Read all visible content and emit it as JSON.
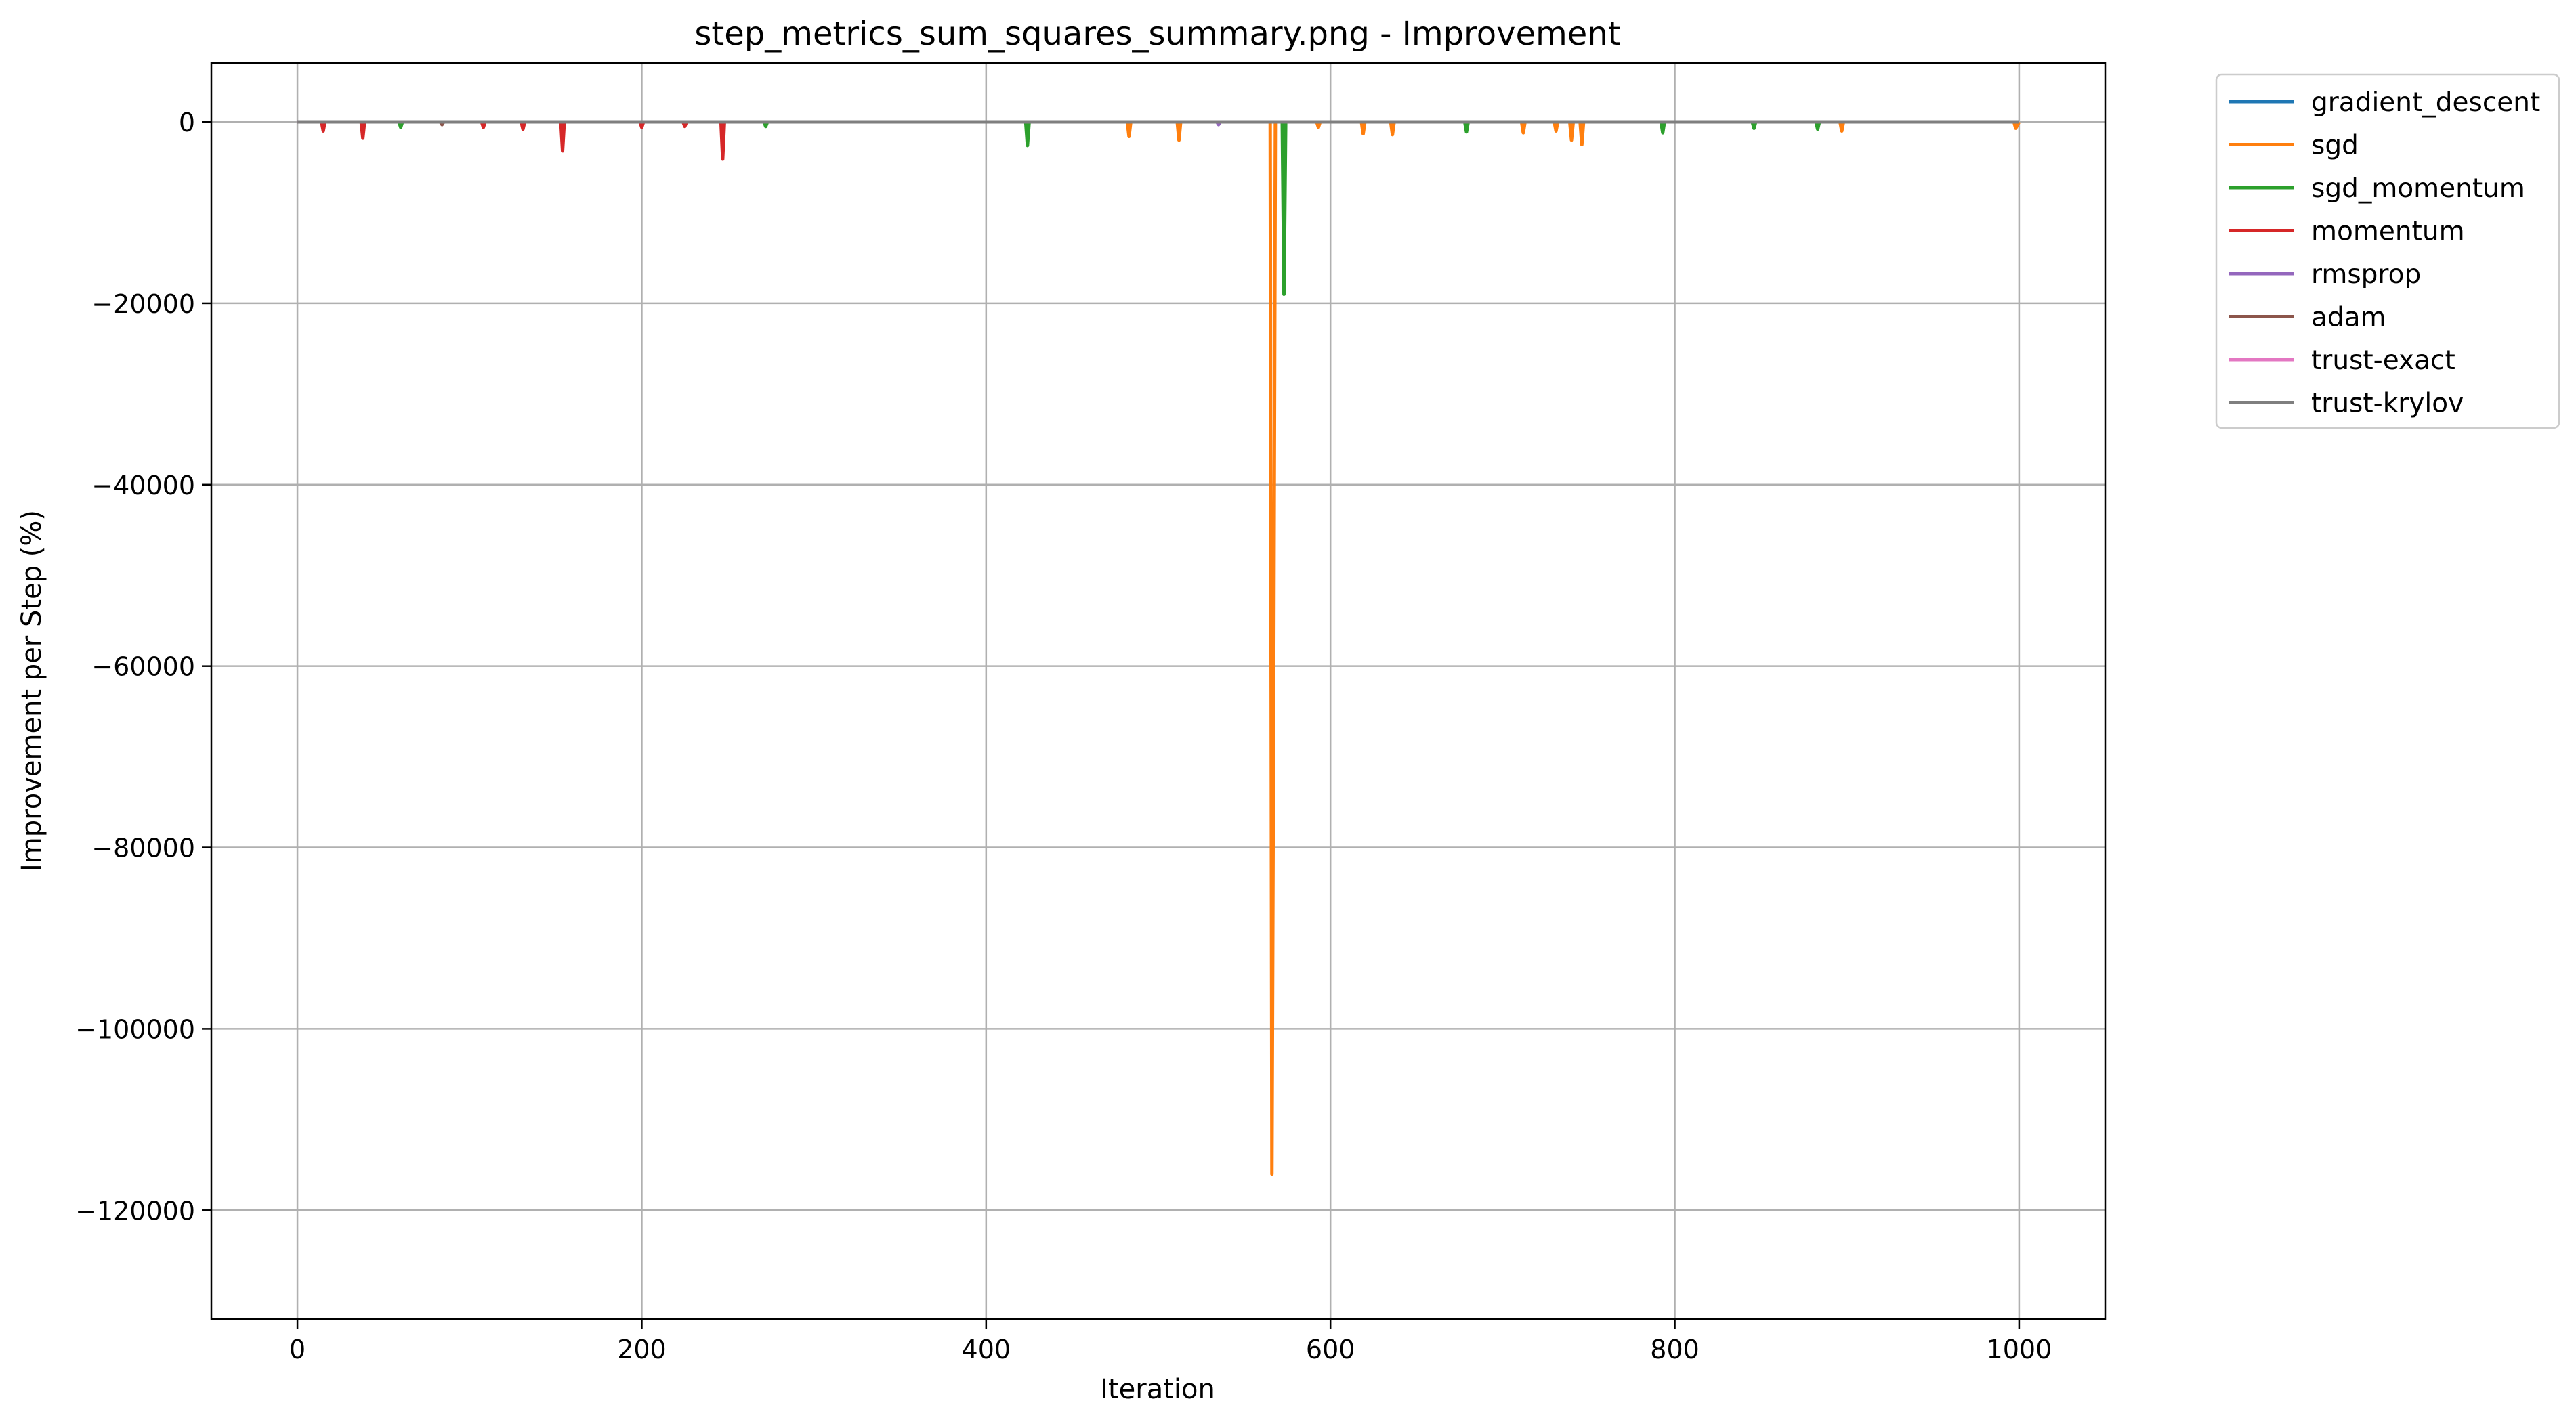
{
  "chart_data": {
    "type": "line",
    "title": "step_metrics_sum_squares_summary.png - Improvement",
    "xlabel": "Iteration",
    "ylabel": "Improvement per Step (%)",
    "xlim": [
      -50,
      1050
    ],
    "ylim": [
      -132000,
      6500
    ],
    "x_ticks": [
      0,
      200,
      400,
      600,
      800,
      1000
    ],
    "y_ticks": [
      0,
      -20000,
      -40000,
      -60000,
      -80000,
      -100000,
      -120000
    ],
    "x_tick_labels": [
      "0",
      "200",
      "400",
      "600",
      "800",
      "1000"
    ],
    "y_tick_labels": [
      "0",
      "−20000",
      "−40000",
      "−60000",
      "−80000",
      "−100000",
      "−120000"
    ],
    "grid": true,
    "legend_position": "outside-top-right",
    "series": [
      {
        "name": "gradient_descent",
        "color": "#1f77b4",
        "points": [
          [
            0,
            0
          ],
          [
            1000,
            0
          ]
        ]
      },
      {
        "name": "sgd",
        "color": "#ff7f0e",
        "points": [
          [
            0,
            0
          ],
          [
            482,
            0
          ],
          [
            483,
            -1600
          ],
          [
            484,
            0
          ],
          [
            511,
            0
          ],
          [
            512,
            -2000
          ],
          [
            513,
            0
          ],
          [
            565,
            0
          ],
          [
            566,
            -116000
          ],
          [
            567,
            -63000
          ],
          [
            568,
            0
          ],
          [
            592,
            0
          ],
          [
            593,
            -600
          ],
          [
            594,
            0
          ],
          [
            618,
            0
          ],
          [
            619,
            -1300
          ],
          [
            620,
            0
          ],
          [
            635,
            0
          ],
          [
            636,
            -1400
          ],
          [
            637,
            0
          ],
          [
            711,
            0
          ],
          [
            712,
            -1200
          ],
          [
            713,
            0
          ],
          [
            730,
            0
          ],
          [
            731,
            -1000
          ],
          [
            732,
            0
          ],
          [
            739,
            0
          ],
          [
            740,
            -2000
          ],
          [
            741,
            0
          ],
          [
            745,
            0
          ],
          [
            746,
            -2500
          ],
          [
            747,
            0
          ],
          [
            896,
            0
          ],
          [
            897,
            -1000
          ],
          [
            898,
            0
          ],
          [
            997,
            0
          ],
          [
            998,
            -700
          ],
          [
            1000,
            0
          ]
        ]
      },
      {
        "name": "sgd_momentum",
        "color": "#2ca02c",
        "points": [
          [
            0,
            0
          ],
          [
            59,
            0
          ],
          [
            60,
            -600
          ],
          [
            61,
            0
          ],
          [
            271,
            0
          ],
          [
            272,
            -500
          ],
          [
            273,
            0
          ],
          [
            423,
            0
          ],
          [
            424,
            -2600
          ],
          [
            425,
            0
          ],
          [
            572,
            0
          ],
          [
            573,
            -19000
          ],
          [
            574,
            0
          ],
          [
            678,
            0
          ],
          [
            679,
            -1100
          ],
          [
            680,
            0
          ],
          [
            792,
            0
          ],
          [
            793,
            -1200
          ],
          [
            794,
            0
          ],
          [
            845,
            0
          ],
          [
            846,
            -700
          ],
          [
            847,
            0
          ],
          [
            882,
            0
          ],
          [
            883,
            -800
          ],
          [
            884,
            0
          ],
          [
            1000,
            0
          ]
        ]
      },
      {
        "name": "momentum",
        "color": "#d62728",
        "points": [
          [
            0,
            0
          ],
          [
            14,
            0
          ],
          [
            15,
            -1000
          ],
          [
            16,
            0
          ],
          [
            37,
            0
          ],
          [
            38,
            -1800
          ],
          [
            39,
            0
          ],
          [
            107,
            0
          ],
          [
            108,
            -600
          ],
          [
            109,
            0
          ],
          [
            130,
            0
          ],
          [
            131,
            -800
          ],
          [
            132,
            0
          ],
          [
            153,
            0
          ],
          [
            154,
            -3200
          ],
          [
            155,
            0
          ],
          [
            199,
            0
          ],
          [
            200,
            -600
          ],
          [
            201,
            0
          ],
          [
            224,
            0
          ],
          [
            225,
            -500
          ],
          [
            226,
            0
          ],
          [
            246,
            0
          ],
          [
            247,
            -4100
          ],
          [
            248,
            0
          ],
          [
            1000,
            0
          ]
        ]
      },
      {
        "name": "rmsprop",
        "color": "#9467bd",
        "points": [
          [
            0,
            0
          ],
          [
            534,
            0
          ],
          [
            535,
            -300
          ],
          [
            536,
            0
          ],
          [
            1000,
            0
          ]
        ]
      },
      {
        "name": "adam",
        "color": "#8c564b",
        "points": [
          [
            0,
            0
          ],
          [
            83,
            0
          ],
          [
            84,
            -300
          ],
          [
            85,
            0
          ],
          [
            1000,
            0
          ]
        ]
      },
      {
        "name": "trust-exact",
        "color": "#e377c2",
        "points": [
          [
            0,
            0
          ],
          [
            1000,
            0
          ]
        ]
      },
      {
        "name": "trust-krylov",
        "color": "#7f7f7f",
        "points": [
          [
            0,
            0
          ],
          [
            1000,
            0
          ]
        ]
      }
    ]
  }
}
